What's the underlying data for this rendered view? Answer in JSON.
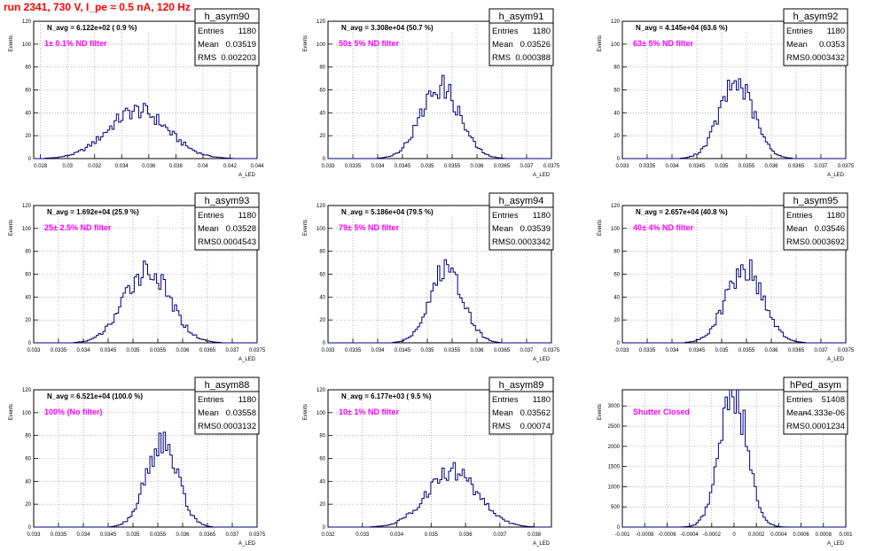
{
  "header": {
    "run_title": "run 2341,   730 V, I_pe ≈ 0.5 nA, 120 Hz"
  },
  "colors": {
    "hist_line": "#000080",
    "filter_text": "#ff00ff",
    "title_text": "#ff0000",
    "grid": "#888888"
  },
  "chart_data": [
    {
      "type": "histogram",
      "title": "h_asym90",
      "stats": {
        "entries_label": "Entries",
        "entries": "1180",
        "mean_label": "Mean",
        "mean": "0.03519",
        "rms_label": "RMS",
        "rms": "0.002203"
      },
      "navg": "N_avg = 6.122e+02 ( 0.9 %)",
      "filter": "1± 0.1% ND filter",
      "ylabel": "Events",
      "xlabel": "A_LED",
      "xlim": [
        0.0275,
        0.044
      ],
      "ylim": [
        0,
        120
      ],
      "xticks": [
        "0.028",
        "0.03",
        "0.032",
        "0.034",
        "0.036",
        "0.038",
        "0.04",
        "0.042",
        "0.044"
      ],
      "yticks": [
        "0",
        "20",
        "40",
        "60",
        "80",
        "100",
        "120"
      ],
      "peak": 42,
      "mean": 0.03519,
      "sigma": 0.0022,
      "bins": 100
    },
    {
      "type": "histogram",
      "title": "h_asym91",
      "stats": {
        "entries_label": "Entries",
        "entries": "1180",
        "mean_label": "Mean",
        "mean": "0.03526",
        "rms_label": "RMS",
        "rms": "0.000388"
      },
      "navg": "N_avg = 3.308e+04 (50.7 %)",
      "filter": "50± 5% ND filter",
      "ylabel": "Events",
      "xlabel": "A_LED",
      "xlim": [
        0.033,
        0.0375
      ],
      "ylim": [
        0,
        120
      ],
      "xticks": [
        "0.033",
        "0.0335",
        "0.034",
        "0.0345",
        "0.035",
        "0.0355",
        "0.036",
        "0.0365",
        "0.037",
        "0.0375"
      ],
      "yticks": [
        "0",
        "20",
        "40",
        "60",
        "80",
        "100",
        "120"
      ],
      "peak": 63,
      "mean": 0.03526,
      "sigma": 0.00039,
      "bins": 100
    },
    {
      "type": "histogram",
      "title": "h_asym92",
      "stats": {
        "entries_label": "Entries",
        "entries": "1180",
        "mean_label": "Mean",
        "mean": "0.0353",
        "rms_label": "RMS",
        "rms": "0.0003432"
      },
      "navg": "N_avg = 4.145e+04 (63.6 %)",
      "filter": "63± 5% ND filter",
      "ylabel": "Events",
      "xlabel": "A_LED",
      "xlim": [
        0.033,
        0.0375
      ],
      "ylim": [
        0,
        120
      ],
      "xticks": [
        "0.033",
        "0.0335",
        "0.034",
        "0.0345",
        "0.035",
        "0.0355",
        "0.036",
        "0.0365",
        "0.037",
        "0.0375"
      ],
      "yticks": [
        "0",
        "20",
        "40",
        "60",
        "80",
        "100",
        "120"
      ],
      "peak": 66,
      "mean": 0.0353,
      "sigma": 0.000343,
      "bins": 100
    },
    {
      "type": "histogram",
      "title": "h_asym93",
      "stats": {
        "entries_label": "Entries",
        "entries": "1180",
        "mean_label": "Mean",
        "mean": "0.03528",
        "rms_label": "RMS",
        "rms": "0.0004543"
      },
      "navg": "N_avg = 1.692e+04 (25.9 %)",
      "filter": "25± 2.5% ND filter",
      "ylabel": "Events",
      "xlabel": "A_LED",
      "xlim": [
        0.033,
        0.0375
      ],
      "ylim": [
        0,
        120
      ],
      "xticks": [
        "0.033",
        "0.0335",
        "0.034",
        "0.0345",
        "0.035",
        "0.0355",
        "0.036",
        "0.0365",
        "0.037",
        "0.0375"
      ],
      "yticks": [
        "0",
        "20",
        "40",
        "60",
        "80",
        "100",
        "120"
      ],
      "peak": 64,
      "mean": 0.03528,
      "sigma": 0.000454,
      "bins": 100
    },
    {
      "type": "histogram",
      "title": "h_asym94",
      "stats": {
        "entries_label": "Entries",
        "entries": "1180",
        "mean_label": "Mean",
        "mean": "0.03539",
        "rms_label": "RMS",
        "rms": "0.0003342"
      },
      "navg": "N_avg = 5.186e+04 (79.5 %)",
      "filter": "79± 5% ND filter",
      "ylabel": "Events",
      "xlabel": "A_LED",
      "xlim": [
        0.033,
        0.0375
      ],
      "ylim": [
        0,
        120
      ],
      "xticks": [
        "0.033",
        "0.0335",
        "0.034",
        "0.0345",
        "0.035",
        "0.0355",
        "0.036",
        "0.0365",
        "0.037",
        "0.0375"
      ],
      "yticks": [
        "0",
        "20",
        "40",
        "60",
        "80",
        "100",
        "120"
      ],
      "peak": 66,
      "mean": 0.03539,
      "sigma": 0.000334,
      "bins": 100
    },
    {
      "type": "histogram",
      "title": "h_asym95",
      "stats": {
        "entries_label": "Entries",
        "entries": "1180",
        "mean_label": "Mean",
        "mean": "0.03546",
        "rms_label": "RMS",
        "rms": "0.0003692"
      },
      "navg": "N_avg = 2.657e+04 (40.8 %)",
      "filter": "40± 4% ND filter",
      "ylabel": "Events",
      "xlabel": "A_LED",
      "xlim": [
        0.033,
        0.0375
      ],
      "ylim": [
        0,
        120
      ],
      "xticks": [
        "0.033",
        "0.0335",
        "0.034",
        "0.0345",
        "0.035",
        "0.0355",
        "0.036",
        "0.0365",
        "0.037",
        "0.0375"
      ],
      "yticks": [
        "0",
        "20",
        "40",
        "60",
        "80",
        "100",
        "120"
      ],
      "peak": 66,
      "mean": 0.03546,
      "sigma": 0.000369,
      "bins": 100
    },
    {
      "type": "histogram",
      "title": "h_asym88",
      "stats": {
        "entries_label": "Entries",
        "entries": "1180",
        "mean_label": "Mean",
        "mean": "0.03558",
        "rms_label": "RMS",
        "rms": "0.0003132"
      },
      "navg": "N_avg = 6.521e+04 (100.0 %)",
      "filter": "100% (No filter)",
      "ylabel": "Events",
      "xlabel": "A_LED",
      "xlim": [
        0.033,
        0.0375
      ],
      "ylim": [
        0,
        120
      ],
      "xticks": [
        "0.033",
        "0.0335",
        "0.034",
        "0.0345",
        "0.035",
        "0.0355",
        "0.036",
        "0.0365",
        "0.037",
        "0.0375"
      ],
      "yticks": [
        "0",
        "20",
        "40",
        "60",
        "80",
        "100",
        "120"
      ],
      "peak": 74,
      "mean": 0.03558,
      "sigma": 0.000313,
      "bins": 100
    },
    {
      "type": "histogram",
      "title": "h_asym89",
      "stats": {
        "entries_label": "Entries",
        "entries": "1180",
        "mean_label": "Mean",
        "mean": "0.03562",
        "rms_label": "RMS",
        "rms": "0.00074"
      },
      "navg": "N_avg = 6.177e+03 ( 9.5 %)",
      "filter": "10± 1% ND filter",
      "ylabel": "Events",
      "xlabel": "A_LED",
      "xlim": [
        0.032,
        0.0385
      ],
      "ylim": [
        0,
        120
      ],
      "xticks": [
        "0.032",
        "0.033",
        "0.034",
        "0.035",
        "0.036",
        "0.037",
        "0.038"
      ],
      "yticks": [
        "0",
        "20",
        "40",
        "60",
        "80",
        "100",
        "120"
      ],
      "peak": 49,
      "mean": 0.03562,
      "sigma": 0.00074,
      "bins": 100
    },
    {
      "type": "histogram",
      "title": "hPed_asym",
      "stats": {
        "entries_label": "Entries",
        "entries": "51408",
        "mean_label": "Mean",
        "mean": "-4.333e-06",
        "rms_label": "RMS",
        "rms": "0.0001234"
      },
      "navg": "",
      "filter": "Shutter Closed",
      "ylabel": "Events",
      "xlabel": "A_LED",
      "xlim": [
        -0.001,
        0.001
      ],
      "ylim": [
        0,
        3400
      ],
      "xticks": [
        "-0.001",
        "-0.0008",
        "-0.0006",
        "-0.0004",
        "-0.0002",
        "0",
        "0.0002",
        "0.0004",
        "0.0006",
        "0.0008",
        "0.001"
      ],
      "yticks": [
        "0",
        "500",
        "1000",
        "1500",
        "2000",
        "2500",
        "3000"
      ],
      "peak": 3300,
      "mean": -4.333e-06,
      "sigma": 0.0001234,
      "bins": 100
    }
  ]
}
